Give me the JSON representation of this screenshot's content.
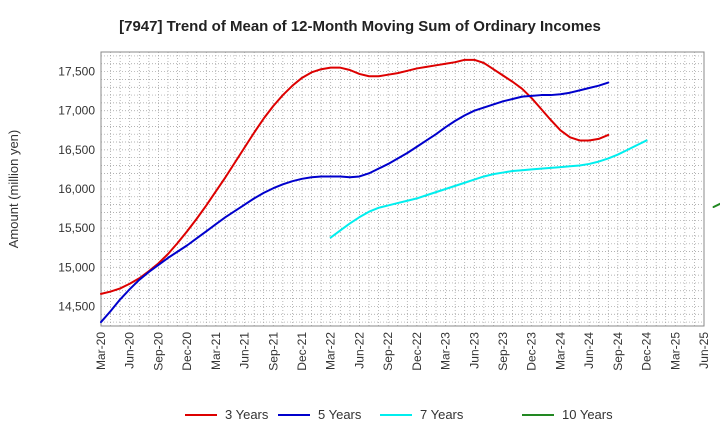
{
  "chart_data": {
    "type": "line",
    "title": "[7947]  Trend of Mean of 12-Month Moving Sum of Ordinary Incomes",
    "xlabel": "",
    "ylabel": "Amount (million yen)",
    "ylim": [
      14250,
      17750
    ],
    "yticks": [
      14500,
      15000,
      15500,
      16000,
      16500,
      17000,
      17500
    ],
    "ytick_labels": [
      "14,500",
      "15,000",
      "15,500",
      "16,000",
      "16,500",
      "17,000",
      "17,500"
    ],
    "x_tick_labels": [
      "Mar-20",
      "Jun-20",
      "Sep-20",
      "Dec-20",
      "Mar-21",
      "Jun-21",
      "Sep-21",
      "Dec-21",
      "Mar-22",
      "Jun-22",
      "Sep-22",
      "Dec-22",
      "Mar-23",
      "Jun-23",
      "Sep-23",
      "Dec-23",
      "Mar-24",
      "Jun-24",
      "Sep-24",
      "Dec-24",
      "Mar-25",
      "Jun-25"
    ],
    "grid": true,
    "legend_position": "bottom",
    "series": [
      {
        "name": "3 Years",
        "color": "#dd0000",
        "start_index": 0,
        "values": [
          14660,
          14690,
          14730,
          14790,
          14860,
          14950,
          15050,
          15170,
          15310,
          15460,
          15620,
          15790,
          15970,
          16150,
          16340,
          16530,
          16720,
          16900,
          17060,
          17200,
          17320,
          17420,
          17490,
          17530,
          17550,
          17550,
          17520,
          17470,
          17440,
          17440,
          17460,
          17480,
          17510,
          17540,
          17560,
          17580,
          17600,
          17620,
          17650,
          17650,
          17610,
          17530,
          17450,
          17370,
          17280,
          17160,
          17020,
          16880,
          16750,
          16660,
          16620,
          16620,
          16640,
          16690
        ]
      },
      {
        "name": "5 Years",
        "color": "#0000cc",
        "start_index": 0,
        "values": [
          14300,
          14440,
          14590,
          14720,
          14840,
          14940,
          15030,
          15120,
          15200,
          15280,
          15370,
          15460,
          15550,
          15640,
          15720,
          15800,
          15880,
          15950,
          16010,
          16060,
          16100,
          16130,
          16150,
          16160,
          16160,
          16160,
          16150,
          16160,
          16200,
          16260,
          16320,
          16390,
          16460,
          16540,
          16620,
          16700,
          16790,
          16870,
          16940,
          17000,
          17040,
          17080,
          17120,
          17150,
          17180,
          17190,
          17200,
          17200,
          17210,
          17230,
          17260,
          17290,
          17320,
          17360
        ]
      },
      {
        "name": "7 Years",
        "color": "#00eeee",
        "start_index": 24,
        "values": [
          15380,
          15470,
          15560,
          15640,
          15710,
          15760,
          15790,
          15820,
          15850,
          15880,
          15920,
          15960,
          16000,
          16040,
          16080,
          16120,
          16160,
          16190,
          16210,
          16230,
          16240,
          16250,
          16260,
          16270,
          16280,
          16290,
          16300,
          16320,
          16350,
          16390,
          16440,
          16500,
          16560,
          16620
        ]
      },
      {
        "name": "10 Years",
        "color": "#228822",
        "start_index": 64,
        "values": [
          15770,
          15830
        ]
      }
    ]
  }
}
